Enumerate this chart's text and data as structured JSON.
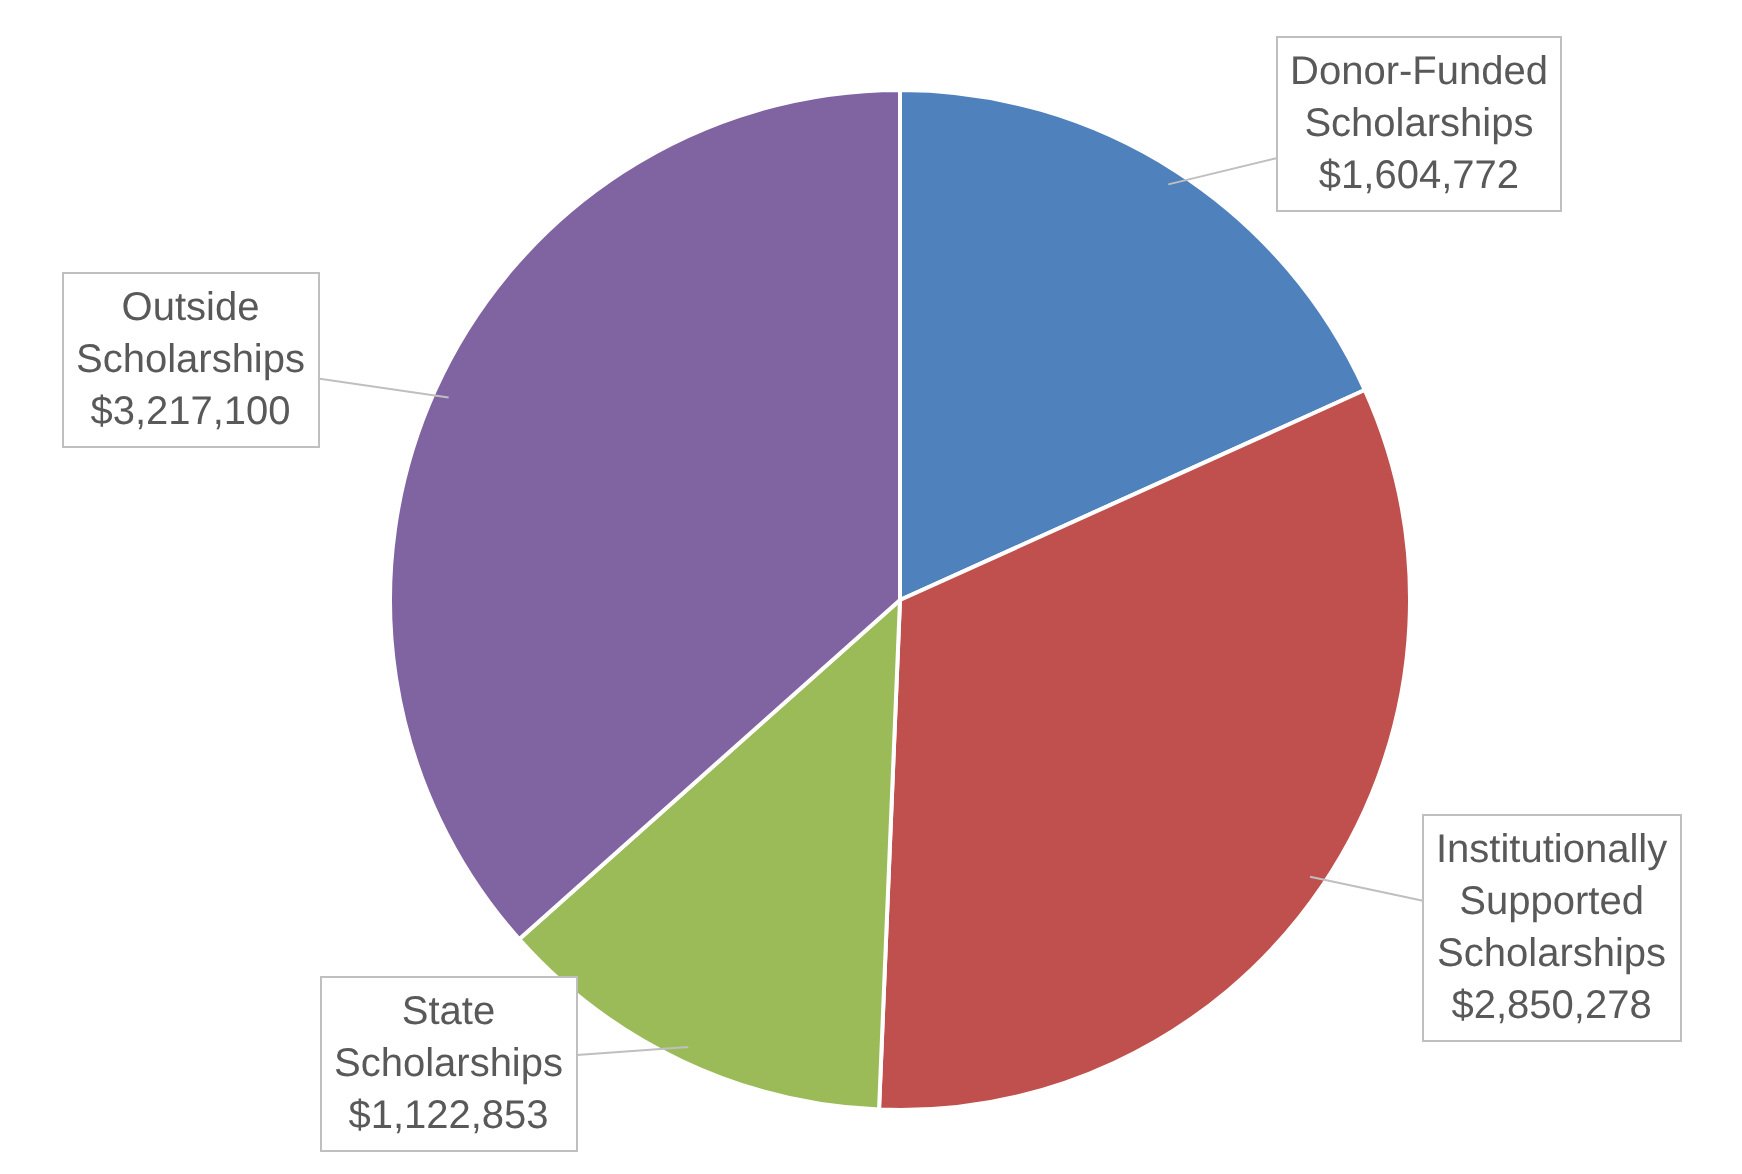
{
  "chart_data": {
    "type": "pie",
    "categories": [
      "Donor-Funded Scholarships",
      "Institutionally Supported Scholarships",
      "State Scholarships",
      "Outside Scholarships"
    ],
    "values": [
      1604772,
      2850278,
      1122853,
      3217100
    ],
    "value_labels": [
      "$1,604,772",
      "$2,850,278",
      "$1,122,853",
      "$3,217,100"
    ],
    "colors": [
      "#4f81bd",
      "#c0504d",
      "#9bbb59",
      "#8064a2"
    ]
  }
}
